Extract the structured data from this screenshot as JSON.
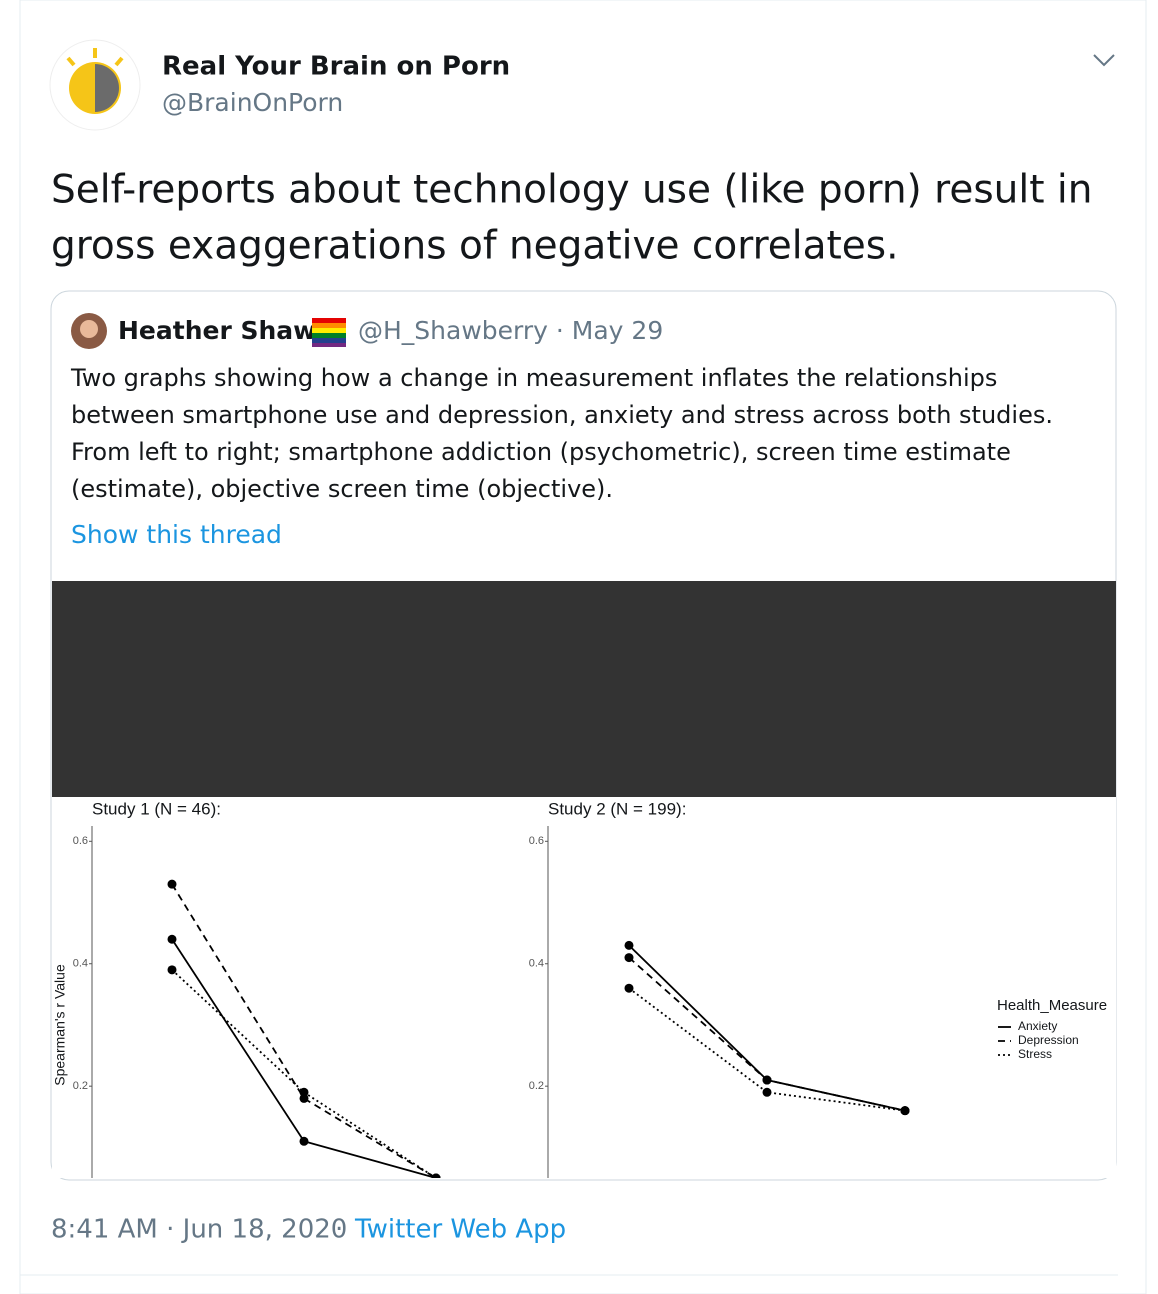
{
  "tweet": {
    "name": "Real Your Brain on Porn",
    "handle": "@BrainOnPorn",
    "text_lines": [
      "Self-reports about technology use (like porn) result in",
      "gross exaggerations of negative correlates."
    ]
  },
  "quoted": {
    "name": "Heather Shaw",
    "handle_date": "@H_Shawberry · May 29",
    "text_lines": [
      "Two graphs showing how a change in measurement inflates the relationships",
      "between smartphone use and depression, anxiety and stress across both studies.",
      "From left to right; smartphone addiction (psychometric), screen time estimate",
      "(estimate), objective screen time (objective)."
    ],
    "thread_link": "Show this thread"
  },
  "chart_data": [
    {
      "type": "line",
      "title": "Study 1 (N = 46):",
      "ylabel": "Spearman's r Value",
      "categories": [
        null,
        null,
        null
      ],
      "ylim": [
        0.05,
        0.625
      ],
      "yticks": [
        0.2,
        0.4,
        0.6
      ],
      "series": [
        {
          "color": "#000000",
          "line_style": "solid",
          "values": [
            0.44,
            0.11,
            0.05
          ]
        },
        {
          "color": "#000000",
          "line_style": "dashed",
          "values": [
            0.53,
            0.18,
            0.05
          ]
        },
        {
          "color": "#000000",
          "line_style": "dotted",
          "values": [
            0.39,
            0.19,
            0.05
          ]
        }
      ]
    },
    {
      "type": "line",
      "title": "Study 2 (N = 199):",
      "legend": true,
      "legend_title": "Health_Measure",
      "categories": [
        null,
        null,
        null
      ],
      "ylim": [
        0.05,
        0.625
      ],
      "yticks": [
        0.2,
        0.4,
        0.6
      ],
      "series": [
        {
          "name": "Anxiety",
          "color": "#000000",
          "line_style": "solid",
          "values": [
            0.43,
            0.21,
            0.16
          ]
        },
        {
          "name": "Depression",
          "color": "#000000",
          "line_style": "dashed",
          "values": [
            0.41,
            0.21,
            0.16
          ]
        },
        {
          "name": "Stress",
          "color": "#000000",
          "line_style": "dotted",
          "values": [
            0.36,
            0.19,
            0.16
          ]
        }
      ]
    }
  ],
  "footer": {
    "timestamp": "8:41 AM · Jun 18, 2020",
    "separator": "·",
    "source": "Twitter Web App"
  }
}
